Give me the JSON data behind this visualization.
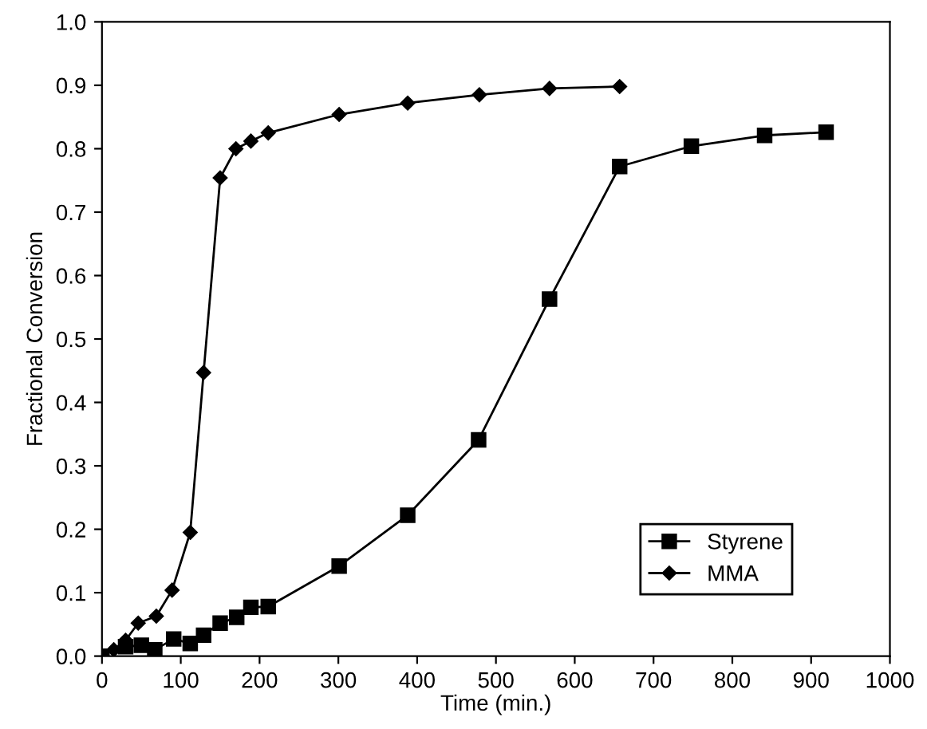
{
  "chart_data": {
    "type": "line",
    "xlabel": "Time (min.)",
    "ylabel": "Fractional Conversion",
    "xlim": [
      0,
      1000
    ],
    "ylim": [
      0,
      1.0
    ],
    "xticks": [
      0,
      100,
      200,
      300,
      400,
      500,
      600,
      700,
      800,
      900,
      1000
    ],
    "yticks": [
      {
        "value": 0,
        "label": "0.0"
      },
      0.1,
      0.2,
      0.3,
      0.4,
      0.5,
      0.6,
      0.7,
      0.8,
      0.9,
      {
        "value": 1,
        "label": "1.0"
      }
    ],
    "grid": false,
    "legend": "bottom right",
    "line_style": "solid",
    "series": [
      {
        "name": "Styrene",
        "color": "#000000",
        "marker": "square",
        "x": [
          0,
          13,
          30,
          50,
          67,
          91,
          112,
          129,
          150,
          171,
          189,
          211,
          301,
          388,
          478,
          568,
          657,
          748,
          841,
          919
        ],
        "values": [
          0,
          null,
          0.015,
          0.017,
          0.01,
          0.027,
          0.02,
          0.033,
          0.052,
          0.061,
          0.077,
          0.078,
          0.142,
          0.222,
          0.341,
          0.563,
          0.772,
          0.804,
          0.821,
          0.826
        ]
      },
      {
        "name": "MMA",
        "color": "#000000",
        "marker": "diamond",
        "x": [
          0,
          15,
          30,
          46,
          69,
          89,
          112,
          129,
          150,
          170,
          189,
          211,
          301,
          388,
          479,
          568,
          657
        ],
        "values": [
          0,
          0.01,
          0.025,
          0.052,
          0.063,
          0.104,
          0.195,
          0.447,
          0.754,
          0.8,
          0.812,
          0.825,
          0.854,
          0.872,
          0.885,
          0.895,
          0.898
        ]
      }
    ]
  }
}
